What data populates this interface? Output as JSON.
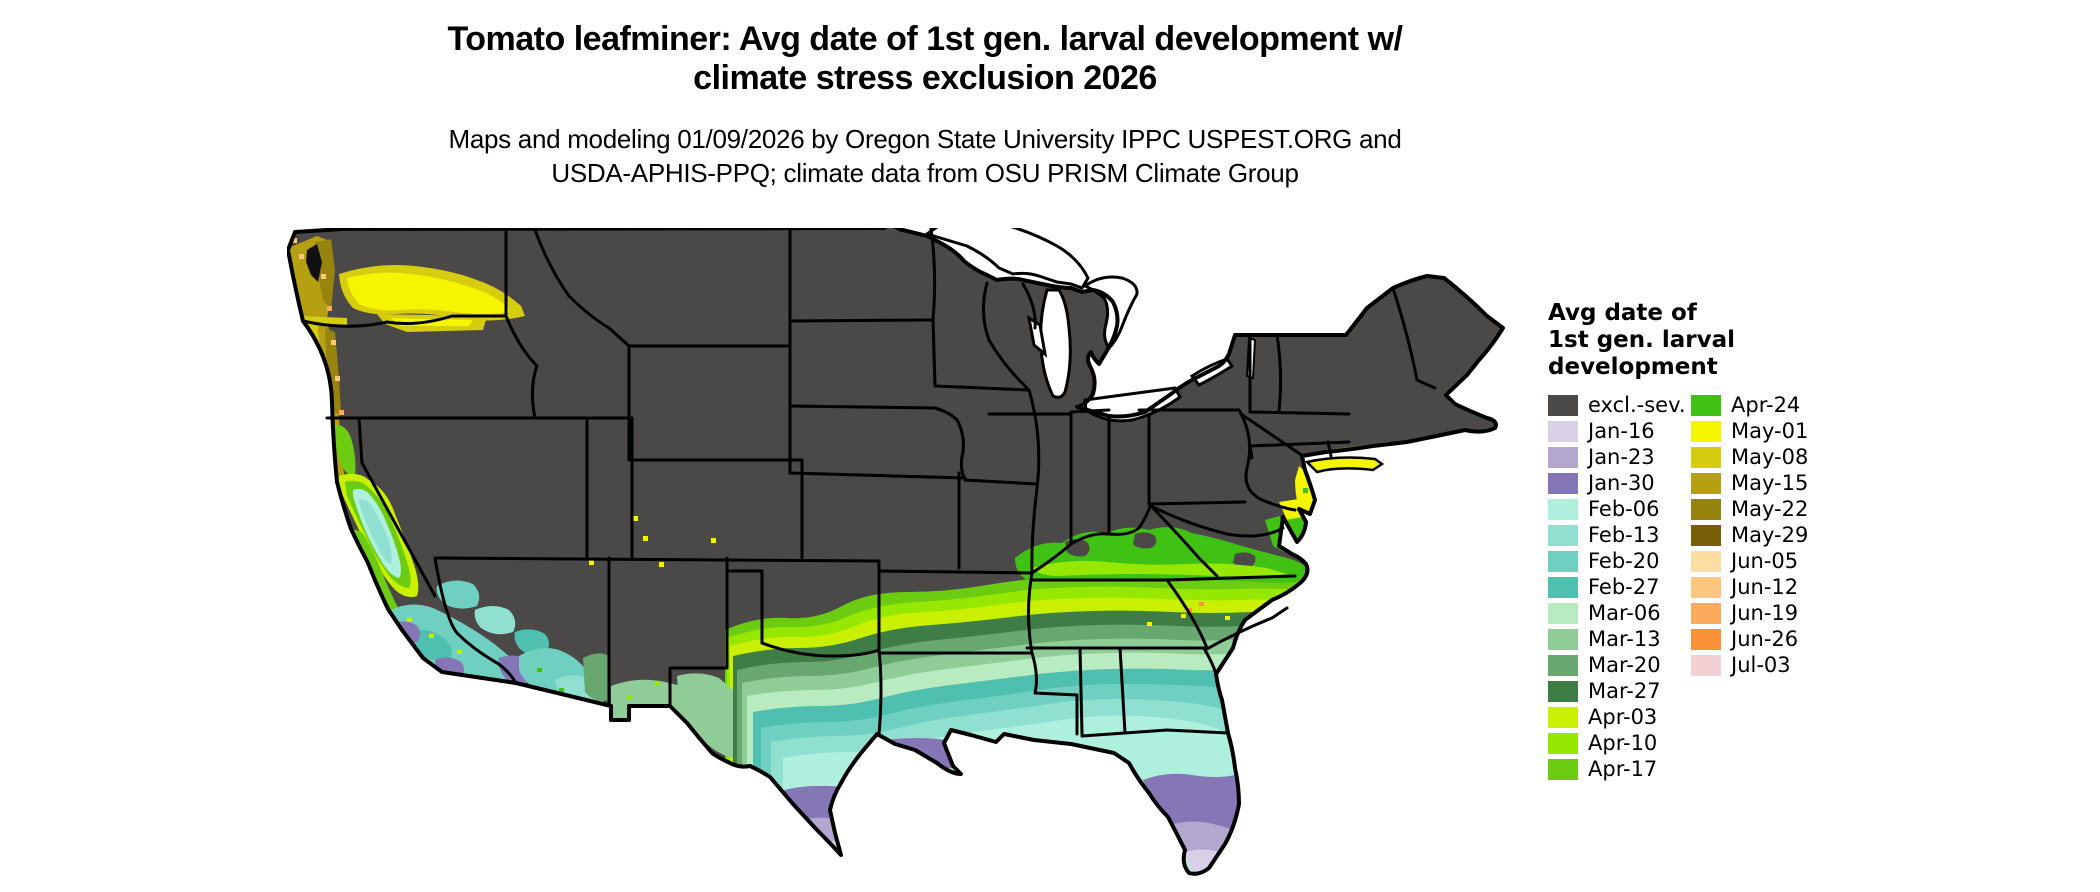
{
  "title": {
    "line1": "Tomato leafminer: Avg date of 1st gen. larval development w/",
    "line2": "climate stress exclusion 2026"
  },
  "subtitle": {
    "line1": "Maps and modeling 01/09/2026 by Oregon State University IPPC USPEST.ORG and",
    "line2": "USDA-APHIS-PPQ; climate data from OSU PRISM Climate Group"
  },
  "legend": {
    "title_lines": [
      "Avg date of",
      "1st gen. larval",
      "development"
    ],
    "column1": [
      {
        "label": "excl.-sev.",
        "color": "#4b4848"
      },
      {
        "label": "Jan-16",
        "color": "#d9d0e8"
      },
      {
        "label": "Jan-23",
        "color": "#b3a6cf"
      },
      {
        "label": "Jan-30",
        "color": "#8577b5"
      },
      {
        "label": "Feb-06",
        "color": "#aef0dd"
      },
      {
        "label": "Feb-13",
        "color": "#8fe0d0"
      },
      {
        "label": "Feb-20",
        "color": "#6fd0c2"
      },
      {
        "label": "Feb-27",
        "color": "#4fc0b0"
      },
      {
        "label": "Mar-06",
        "color": "#b8ecc0"
      },
      {
        "label": "Mar-13",
        "color": "#90cc98"
      },
      {
        "label": "Mar-20",
        "color": "#68a870"
      },
      {
        "label": "Mar-27",
        "color": "#3e7e46"
      },
      {
        "label": "Apr-03",
        "color": "#c8f000"
      },
      {
        "label": "Apr-10",
        "color": "#97e800"
      },
      {
        "label": "Apr-17",
        "color": "#6ccc12"
      }
    ],
    "column2": [
      {
        "label": "Apr-24",
        "color": "#40c214"
      },
      {
        "label": "May-01",
        "color": "#f5f500"
      },
      {
        "label": "May-08",
        "color": "#d6cd10"
      },
      {
        "label": "May-15",
        "color": "#b5a011"
      },
      {
        "label": "May-22",
        "color": "#97840f"
      },
      {
        "label": "May-29",
        "color": "#7a5f08"
      },
      {
        "label": "Jun-05",
        "color": "#fcdda2"
      },
      {
        "label": "Jun-12",
        "color": "#fcc67e"
      },
      {
        "label": "Jun-19",
        "color": "#fcaa5e"
      },
      {
        "label": "Jun-26",
        "color": "#fa9338"
      },
      {
        "label": "Jul-03",
        "color": "#f2d0d4"
      }
    ]
  },
  "map": {
    "area": "Contiguous United States",
    "colors": {
      "excluded": "#4b4848",
      "water": "#111111",
      "lake": "#ffffff",
      "border": "#000000",
      "background": "#ffffff"
    }
  }
}
